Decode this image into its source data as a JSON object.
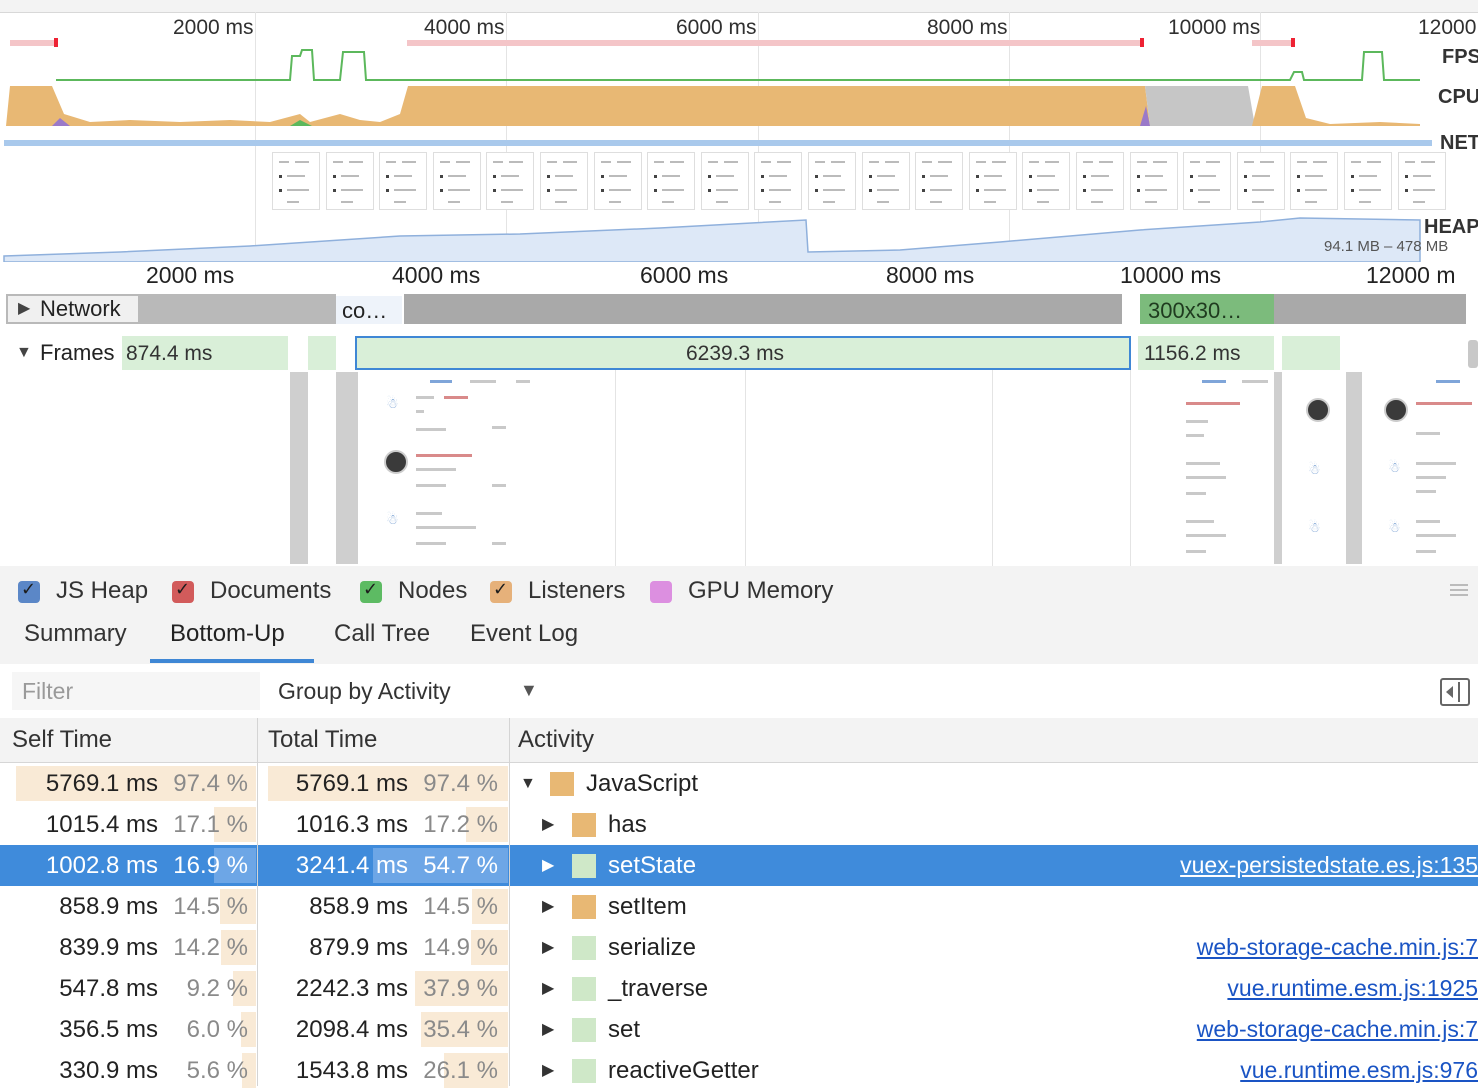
{
  "overview": {
    "ticks": [
      "2000 ms",
      "4000 ms",
      "6000 ms",
      "8000 ms",
      "10000 ms",
      "12000"
    ],
    "tracks": {
      "fps": "FPS",
      "cpu": "CPU",
      "net": "NET",
      "heap": "HEAP"
    },
    "heap_range": "94.1 MB – 478 MB"
  },
  "ruler": {
    "ticks": [
      "2000 ms",
      "4000 ms",
      "6000 ms",
      "8000 ms",
      "10000 ms",
      "12000 m"
    ]
  },
  "network": {
    "label": "Network",
    "bar1": "co…",
    "bar2": "300x30…"
  },
  "frames": {
    "label": "Frames",
    "segments": [
      "874.4 ms",
      "6239.3 ms",
      "1156.2 ms"
    ]
  },
  "counters": [
    {
      "label": "JS Heap",
      "color": "#5b87c7",
      "checked": true
    },
    {
      "label": "Documents",
      "color": "#d25b5b",
      "checked": true
    },
    {
      "label": "Nodes",
      "color": "#5dbb63",
      "checked": true
    },
    {
      "label": "Listeners",
      "color": "#e6b17a",
      "checked": true
    },
    {
      "label": "GPU Memory",
      "color": "#dc8fe0",
      "checked": false
    }
  ],
  "tabs": [
    "Summary",
    "Bottom-Up",
    "Call Tree",
    "Event Log"
  ],
  "active_tab": "Bottom-Up",
  "filter": {
    "placeholder": "Filter",
    "group_by": "Group by Activity"
  },
  "table": {
    "headers": {
      "self": "Self Time",
      "total": "Total Time",
      "activity": "Activity"
    },
    "rows": [
      {
        "self": "5769.1 ms",
        "self_pct": "97.4 %",
        "total": "5769.1 ms",
        "total_pct": "97.4 %",
        "name": "JavaScript",
        "expanded": true,
        "color": "#e8b874",
        "link": "",
        "self_frac": 0.974,
        "total_frac": 0.974
      },
      {
        "self": "1015.4 ms",
        "self_pct": "17.1 %",
        "total": "1016.3 ms",
        "total_pct": "17.2 %",
        "name": "has",
        "expanded": false,
        "color": "#e8b874",
        "link": "",
        "self_frac": 0.171,
        "total_frac": 0.172
      },
      {
        "self": "1002.8 ms",
        "self_pct": "16.9 %",
        "total": "3241.4 ms",
        "total_pct": "54.7 %",
        "name": "setState",
        "expanded": false,
        "color": "#cfe8c8",
        "link": "vuex-persistedstate.es.js:135",
        "selected": true,
        "self_frac": 0.169,
        "total_frac": 0.547
      },
      {
        "self": "858.9 ms",
        "self_pct": "14.5 %",
        "total": "858.9 ms",
        "total_pct": "14.5 %",
        "name": "setItem",
        "expanded": false,
        "color": "#e8b874",
        "link": "",
        "self_frac": 0.145,
        "total_frac": 0.145
      },
      {
        "self": "839.9 ms",
        "self_pct": "14.2 %",
        "total": "879.9 ms",
        "total_pct": "14.9 %",
        "name": "serialize",
        "expanded": false,
        "color": "#cfe8c8",
        "link": "web-storage-cache.min.js:7",
        "self_frac": 0.142,
        "total_frac": 0.149
      },
      {
        "self": "547.8 ms",
        "self_pct": "9.2 %",
        "total": "2242.3 ms",
        "total_pct": "37.9 %",
        "name": "_traverse",
        "expanded": false,
        "color": "#cfe8c8",
        "link": "vue.runtime.esm.js:1925",
        "self_frac": 0.092,
        "total_frac": 0.379
      },
      {
        "self": "356.5 ms",
        "self_pct": "6.0 %",
        "total": "2098.4 ms",
        "total_pct": "35.4 %",
        "name": "set",
        "expanded": false,
        "color": "#cfe8c8",
        "link": "web-storage-cache.min.js:7",
        "self_frac": 0.06,
        "total_frac": 0.354
      },
      {
        "self": "330.9 ms",
        "self_pct": "5.6 %",
        "total": "1543.8 ms",
        "total_pct": "26.1 %",
        "name": "reactiveGetter",
        "expanded": false,
        "color": "#cfe8c8",
        "link": "vue.runtime.esm.js:976",
        "self_frac": 0.056,
        "total_frac": 0.261
      }
    ]
  }
}
